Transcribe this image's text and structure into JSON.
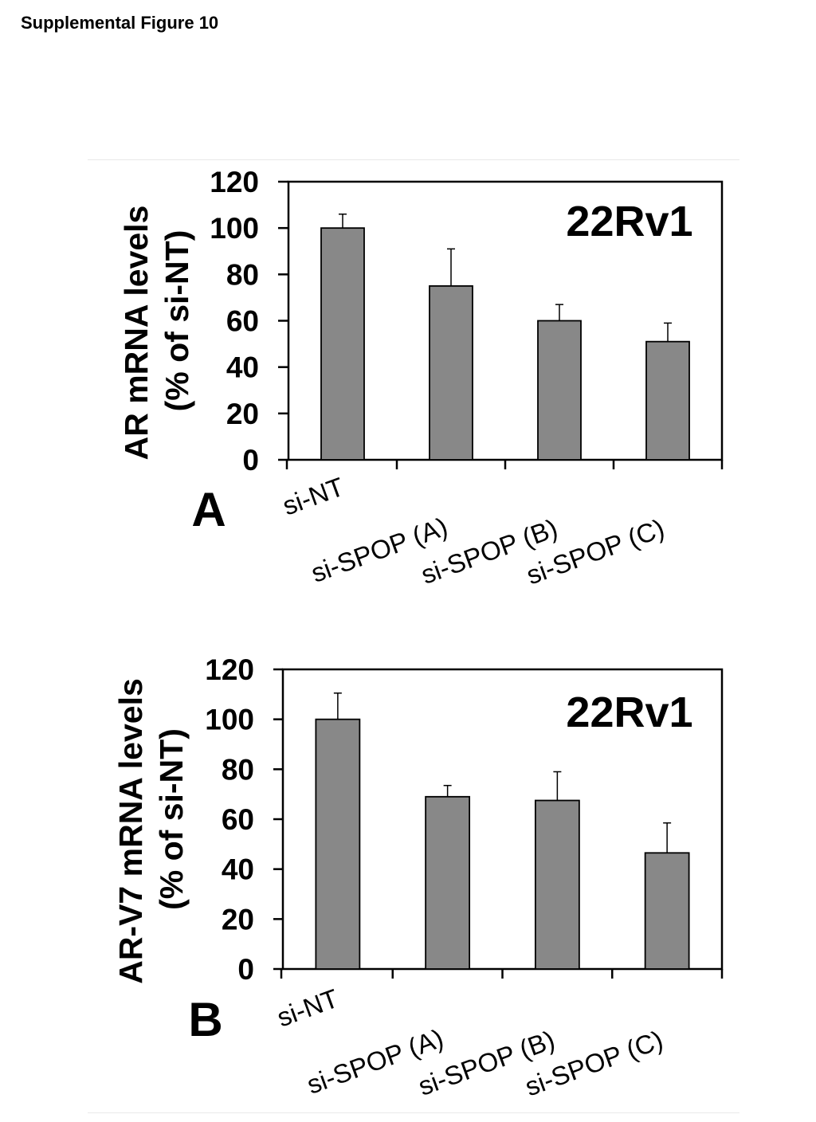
{
  "figure_title": "Supplemental Figure 10",
  "chart_data": [
    {
      "type": "bar",
      "panel_label": "A",
      "annotation": "22Rv1",
      "categories": [
        "si-NT",
        "si-SPOP (A)",
        "si-SPOP (B)",
        "si-SPOP (C)"
      ],
      "values": [
        100,
        75,
        60,
        51
      ],
      "errors": [
        6,
        16,
        7,
        8
      ],
      "ylabel_line1": "AR mRNA levels",
      "ylabel_line2": "(% of si-NT)",
      "ylim": [
        0,
        120
      ],
      "yticks": [
        "0",
        "20",
        "40",
        "60",
        "80",
        "100",
        "120"
      ],
      "bar_color": "#888888",
      "grid": false
    },
    {
      "type": "bar",
      "panel_label": "B",
      "annotation": "22Rv1",
      "categories": [
        "si-NT",
        "si-SPOP (A)",
        "si-SPOP (B)",
        "si-SPOP (C)"
      ],
      "values": [
        100,
        69,
        67.5,
        46.5
      ],
      "errors": [
        10.5,
        4.5,
        11.5,
        12
      ],
      "ylabel_line1": "AR-V7 mRNA levels",
      "ylabel_line2": "(% of si-NT)",
      "ylim": [
        0,
        120
      ],
      "yticks": [
        "0",
        "20",
        "40",
        "60",
        "80",
        "100",
        "120"
      ],
      "bar_color": "#888888",
      "grid": false
    }
  ]
}
